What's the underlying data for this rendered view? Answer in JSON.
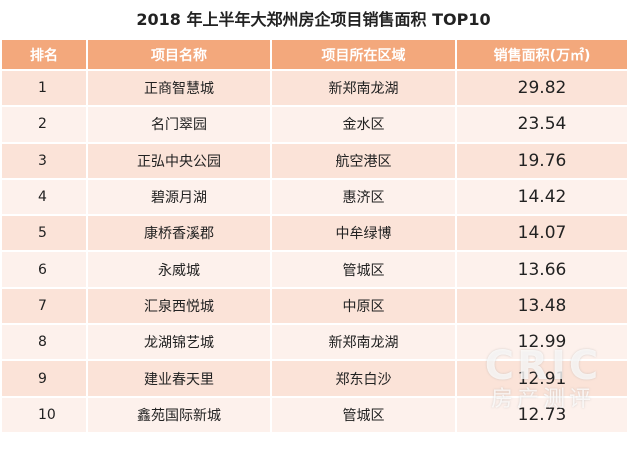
{
  "title": "2018 年上半年大郑州房企项目销售面积 TOP10",
  "table": {
    "header": [
      "排名",
      "项目名称",
      "项目所在区域",
      "销售面积(万㎡)"
    ],
    "rows": [
      [
        "1",
        "正商智慧城",
        "新郑南龙湖",
        "29.82"
      ],
      [
        "2",
        "名门翠园",
        "金水区",
        "23.54"
      ],
      [
        "3",
        "正弘中央公园",
        "航空港区",
        "19.76"
      ],
      [
        "4",
        "碧源月湖",
        "惠济区",
        "14.42"
      ],
      [
        "5",
        "康桥香溪郡",
        "中牟绿博",
        "14.07"
      ],
      [
        "6",
        "永威城",
        "管城区",
        "13.66"
      ],
      [
        "7",
        "汇泉西悦城",
        "中原区",
        "13.48"
      ],
      [
        "8",
        "龙湖锦艺城",
        "新郑南龙湖",
        "12.99"
      ],
      [
        "9",
        "建业春天里",
        "郑东白沙",
        "12.91"
      ],
      [
        "10",
        "鑫苑国际新城",
        "管城区",
        "12.73"
      ]
    ]
  },
  "watermark": {
    "brand": "CRIC",
    "sub": "房产测评"
  }
}
